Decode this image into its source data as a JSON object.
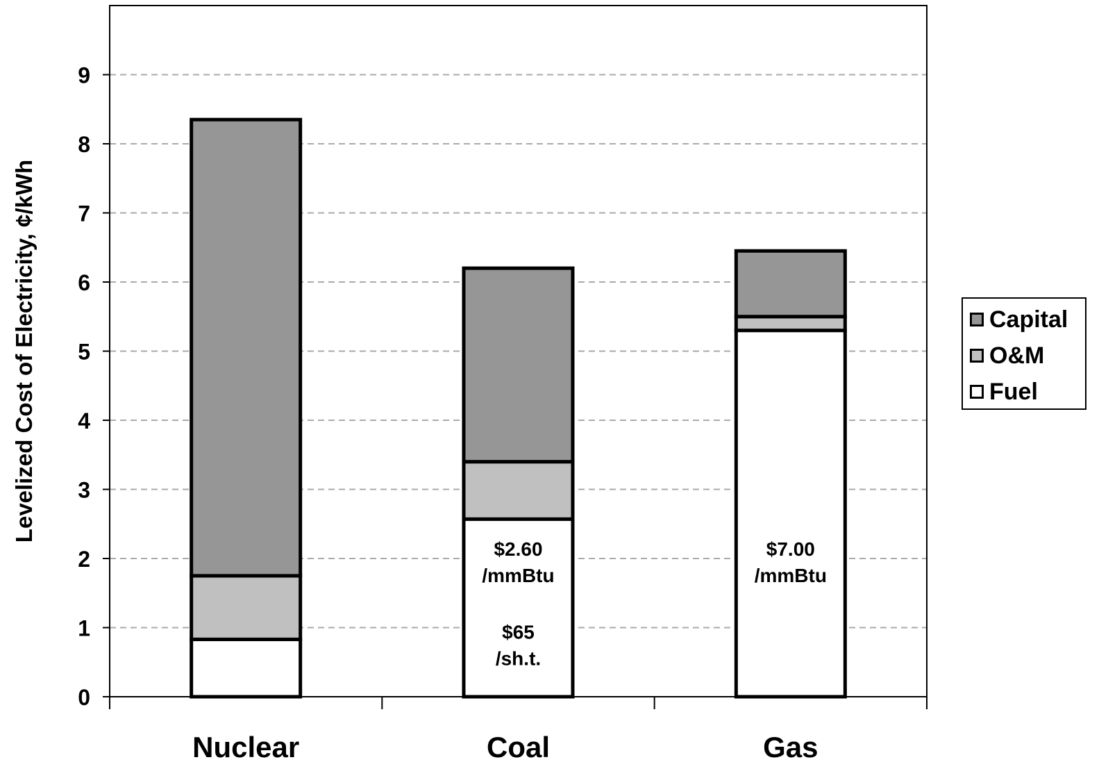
{
  "chart_data": {
    "type": "bar",
    "stacked": true,
    "categories": [
      "Nuclear",
      "Coal",
      "Gas"
    ],
    "series": [
      {
        "name": "Fuel",
        "values": [
          0.83,
          2.57,
          5.3
        ],
        "color": "#ffffff"
      },
      {
        "name": "O&M",
        "values": [
          0.92,
          0.83,
          0.2
        ],
        "color": "#c0c0c0"
      },
      {
        "name": "Capital",
        "values": [
          6.6,
          2.8,
          0.95
        ],
        "color": "#969696"
      }
    ],
    "title": "",
    "xlabel": "",
    "ylabel": "Levelized Cost of Electricity, ¢/kWh",
    "ylim": [
      0,
      10
    ],
    "yticks": [
      "0",
      "1",
      "2",
      "3",
      "4",
      "5",
      "6",
      "7",
      "8",
      "9"
    ],
    "grid": true,
    "legend_position": "right",
    "legend_order": [
      "Capital",
      "O&M",
      "Fuel"
    ],
    "annotations": [
      {
        "category": "Coal",
        "lines": [
          "$2.60",
          "/mmBtu"
        ],
        "y": 2.0
      },
      {
        "category": "Coal",
        "lines": [
          "$65",
          "/sh.t."
        ],
        "y": 0.8
      },
      {
        "category": "Gas",
        "lines": [
          "$7.00",
          "/mmBtu"
        ],
        "y": 2.0
      }
    ]
  },
  "legend": {
    "capital": "Capital",
    "om": "O&M",
    "fuel": "Fuel"
  }
}
